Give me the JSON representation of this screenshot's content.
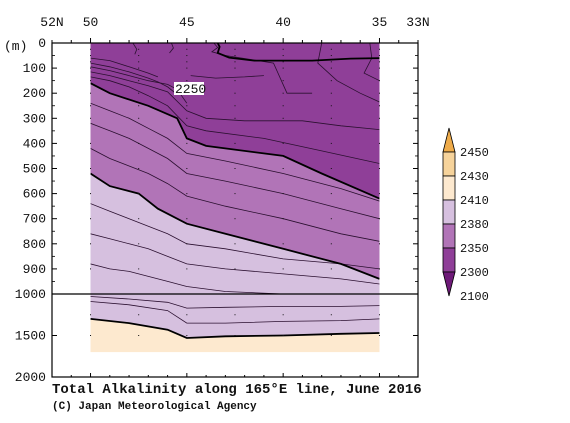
{
  "chart_data": {
    "type": "contour",
    "title": "Total Alkalinity along 165°E line, June 2016",
    "credit": "(C) Japan Meteorological Agency",
    "depth_unit": "(m)",
    "contour_label": "2250",
    "x_axis": {
      "tick_labels": [
        "52N",
        "50",
        "45",
        "40",
        "35",
        "33N"
      ],
      "tick_values": [
        52,
        50,
        45,
        40,
        35,
        33
      ],
      "range": [
        52,
        33
      ]
    },
    "y_axis": {
      "tick_labels": [
        "0",
        "100",
        "200",
        "300",
        "400",
        "500",
        "600",
        "700",
        "800",
        "900",
        "1000",
        "1500",
        "2000"
      ],
      "upper_range_m": [
        0,
        1000
      ],
      "lower_range_m": [
        1000,
        2000
      ],
      "break_at": 1000
    },
    "legend": {
      "levels": [
        2100,
        2300,
        2350,
        2380,
        2410,
        2430,
        2450
      ],
      "labels": [
        "2100",
        "2300",
        "2350",
        "2380",
        "2410",
        "2430",
        "2450"
      ],
      "colors": [
        "#6e1a78",
        "#8f3f98",
        "#b174b7",
        "#d6c0df",
        "#fde9cf",
        "#f6d39b",
        "#eeab4a"
      ]
    },
    "fill_colors": {
      "deep_purple": "#8f3f98",
      "mid_purple": "#b174b7",
      "light_purple": "#d6c0df",
      "cream": "#fde9cf"
    },
    "section": {
      "lat_range": [
        50,
        35
      ],
      "depth_range": [
        0,
        1700
      ]
    },
    "bold_contours": [
      {
        "name": "2250",
        "points": [
          [
            43.4,
            0
          ],
          [
            43.3,
            15
          ],
          [
            43.4,
            40
          ],
          [
            42.8,
            58
          ],
          [
            41.5,
            70
          ],
          [
            38.5,
            70
          ],
          [
            36.5,
            62
          ],
          [
            35.0,
            60
          ]
        ]
      },
      {
        "name": "2300",
        "points": [
          [
            50,
            160
          ],
          [
            49,
            200
          ],
          [
            47,
            250
          ],
          [
            45.5,
            300
          ],
          [
            45,
            380
          ],
          [
            44,
            410
          ],
          [
            40,
            450
          ],
          [
            38,
            520
          ],
          [
            35,
            620
          ]
        ]
      },
      {
        "name": "2350",
        "points": [
          [
            50,
            520
          ],
          [
            49,
            570
          ],
          [
            47.5,
            600
          ],
          [
            46.5,
            660
          ],
          [
            45,
            720
          ],
          [
            43,
            760
          ],
          [
            40,
            820
          ],
          [
            37,
            880
          ],
          [
            35,
            940
          ]
        ]
      },
      {
        "name": "2380",
        "points": [
          [
            50,
            1300
          ],
          [
            48,
            1350
          ],
          [
            46,
            1430
          ],
          [
            45,
            1530
          ],
          [
            43,
            1510
          ],
          [
            40,
            1500
          ],
          [
            37,
            1480
          ],
          [
            35,
            1470
          ]
        ]
      }
    ],
    "thin_contours_upper": [
      [
        [
          50,
          60
        ],
        [
          49,
          70
        ],
        [
          48,
          95
        ],
        [
          47,
          120
        ],
        [
          46.5,
          135
        ]
      ],
      [
        [
          50,
          80
        ],
        [
          49,
          95
        ],
        [
          48,
          115
        ],
        [
          47,
          140
        ],
        [
          46.5,
          155
        ],
        [
          46,
          175
        ],
        [
          45.5,
          205
        ]
      ],
      [
        [
          50,
          95
        ],
        [
          49,
          110
        ],
        [
          48,
          130
        ],
        [
          47,
          150
        ],
        [
          46,
          165
        ],
        [
          45.5,
          185
        ],
        [
          45,
          240
        ]
      ],
      [
        [
          50,
          115
        ],
        [
          49,
          130
        ],
        [
          48,
          150
        ],
        [
          47,
          170
        ],
        [
          46,
          195
        ],
        [
          45,
          270
        ],
        [
          44,
          300
        ],
        [
          42,
          310
        ],
        [
          39,
          310
        ],
        [
          37,
          330
        ],
        [
          35,
          345
        ]
      ],
      [
        [
          50,
          135
        ],
        [
          49,
          150
        ],
        [
          48,
          175
        ],
        [
          47,
          210
        ],
        [
          46,
          250
        ],
        [
          45,
          330
        ],
        [
          44,
          350
        ],
        [
          41,
          380
        ],
        [
          38,
          430
        ],
        [
          35,
          480
        ]
      ],
      [
        [
          50,
          240
        ],
        [
          49,
          270
        ],
        [
          48,
          300
        ],
        [
          47,
          340
        ],
        [
          46,
          380
        ],
        [
          45,
          440
        ],
        [
          43,
          470
        ],
        [
          40,
          520
        ],
        [
          37,
          580
        ],
        [
          35,
          630
        ]
      ],
      [
        [
          50,
          320
        ],
        [
          49,
          350
        ],
        [
          48,
          380
        ],
        [
          47,
          420
        ],
        [
          46,
          460
        ],
        [
          45,
          520
        ],
        [
          43,
          550
        ],
        [
          40,
          600
        ],
        [
          37,
          660
        ],
        [
          35,
          700
        ]
      ],
      [
        [
          50,
          420
        ],
        [
          49,
          460
        ],
        [
          48,
          490
        ],
        [
          47,
          520
        ],
        [
          46,
          560
        ],
        [
          45,
          610
        ],
        [
          43,
          650
        ],
        [
          40,
          700
        ],
        [
          37,
          760
        ],
        [
          35,
          790
        ]
      ],
      [
        [
          50,
          640
        ],
        [
          49,
          670
        ],
        [
          48,
          700
        ],
        [
          47,
          730
        ],
        [
          46,
          760
        ],
        [
          45,
          800
        ],
        [
          43,
          820
        ],
        [
          40,
          860
        ],
        [
          37,
          880
        ],
        [
          35,
          900
        ]
      ],
      [
        [
          50,
          760
        ],
        [
          49,
          780
        ],
        [
          48,
          800
        ],
        [
          47,
          820
        ],
        [
          46,
          850
        ],
        [
          45,
          880
        ],
        [
          43,
          900
        ],
        [
          40,
          920
        ],
        [
          37,
          940
        ],
        [
          35,
          960
        ]
      ],
      [
        [
          50,
          880
        ],
        [
          49,
          900
        ],
        [
          48,
          910
        ],
        [
          47,
          930
        ],
        [
          46,
          950
        ],
        [
          45,
          970
        ],
        [
          43,
          990
        ],
        [
          40,
          1000
        ]
      ]
    ],
    "thin_contours_surface": [
      [
        [
          47.8,
          0
        ],
        [
          47.6,
          25
        ],
        [
          47.7,
          45
        ]
      ],
      [
        [
          45.8,
          0
        ],
        [
          45.7,
          20
        ],
        [
          45.9,
          40
        ]
      ],
      [
        [
          43.6,
          0
        ],
        [
          43.4,
          18
        ],
        [
          43.7,
          35
        ],
        [
          43.0,
          50
        ],
        [
          40.5,
          80
        ],
        [
          39.8,
          200
        ],
        [
          38.5,
          200
        ]
      ],
      [
        [
          38.0,
          0
        ],
        [
          38.2,
          80
        ],
        [
          37.2,
          150
        ],
        [
          36.0,
          200
        ],
        [
          35,
          235
        ]
      ],
      [
        [
          35.5,
          0
        ],
        [
          35.4,
          60
        ],
        [
          35.8,
          120
        ],
        [
          35,
          150
        ]
      ],
      [
        [
          44.8,
          130
        ],
        [
          43.5,
          140
        ],
        [
          42,
          135
        ],
        [
          41,
          130
        ]
      ]
    ],
    "thin_contours_lower": [
      [
        [
          50,
          1030
        ],
        [
          48,
          1060
        ],
        [
          46,
          1100
        ],
        [
          45,
          1170
        ],
        [
          43,
          1160
        ],
        [
          40,
          1150
        ],
        [
          37,
          1150
        ],
        [
          35,
          1140
        ]
      ],
      [
        [
          50,
          1090
        ],
        [
          48,
          1130
        ],
        [
          46,
          1200
        ],
        [
          45,
          1350
        ],
        [
          43,
          1350
        ],
        [
          40,
          1330
        ],
        [
          37,
          1320
        ],
        [
          35,
          1300
        ]
      ]
    ]
  }
}
